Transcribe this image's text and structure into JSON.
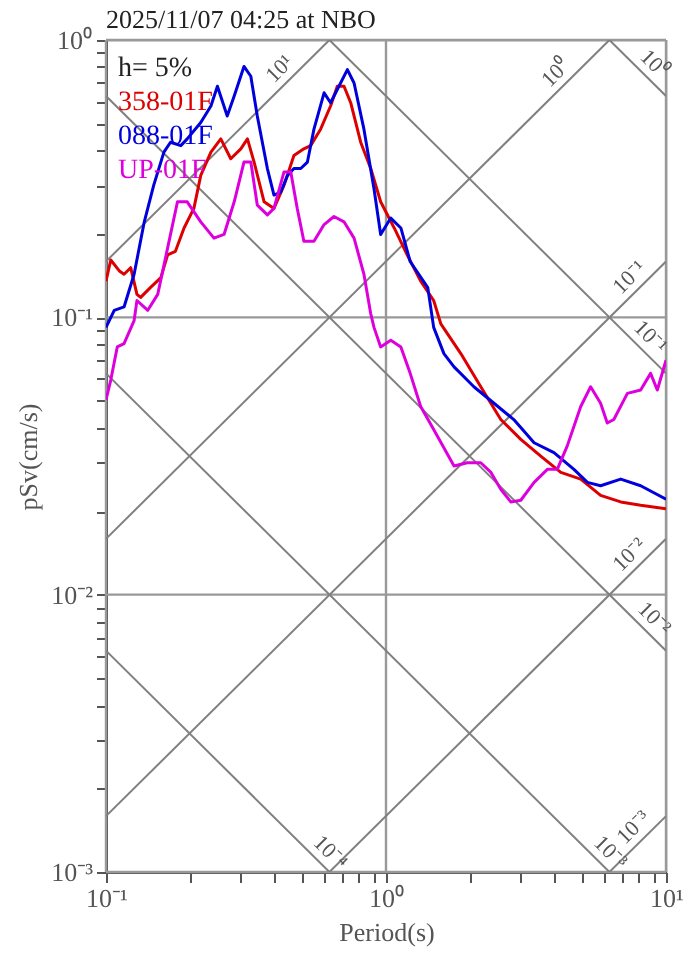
{
  "chart_data": {
    "type": "line",
    "title": "2025/11/07 04:25 at NBO",
    "xlabel": "Period(s)",
    "ylabel": "pSv(cm/s)",
    "log": "xy",
    "grid": true,
    "legend": "top left",
    "xlim": [
      0.1,
      10
    ],
    "ylim": [
      0.001,
      1
    ],
    "xticks": [
      {
        "value": 0.1,
        "label": "10⁻¹"
      },
      {
        "value": 0.2,
        "label": null
      },
      {
        "value": 0.3,
        "label": null
      },
      {
        "value": 0.4,
        "label": null
      },
      {
        "value": 0.5,
        "label": null
      },
      {
        "value": 0.6,
        "label": null
      },
      {
        "value": 0.7,
        "label": null
      },
      {
        "value": 0.8,
        "label": null
      },
      {
        "value": 0.9,
        "label": null
      },
      {
        "value": 1,
        "label": "10⁰"
      },
      {
        "value": 2,
        "label": null
      },
      {
        "value": 3,
        "label": null
      },
      {
        "value": 4,
        "label": null
      },
      {
        "value": 5,
        "label": null
      },
      {
        "value": 6,
        "label": null
      },
      {
        "value": 7,
        "label": null
      },
      {
        "value": 8,
        "label": null
      },
      {
        "value": 9,
        "label": null
      },
      {
        "value": 10,
        "label": "10¹"
      }
    ],
    "yticks": [
      {
        "value": 0.001,
        "label": "10⁻³"
      },
      {
        "value": 0.002,
        "label": null
      },
      {
        "value": 0.003,
        "label": null
      },
      {
        "value": 0.004,
        "label": null
      },
      {
        "value": 0.005,
        "label": null
      },
      {
        "value": 0.006,
        "label": null
      },
      {
        "value": 0.007,
        "label": null
      },
      {
        "value": 0.008,
        "label": null
      },
      {
        "value": 0.009,
        "label": null
      },
      {
        "value": 0.01,
        "label": "10⁻²"
      },
      {
        "value": 0.02,
        "label": null
      },
      {
        "value": 0.03,
        "label": null
      },
      {
        "value": 0.04,
        "label": null
      },
      {
        "value": 0.05,
        "label": null
      },
      {
        "value": 0.06,
        "label": null
      },
      {
        "value": 0.07,
        "label": null
      },
      {
        "value": 0.08,
        "label": null
      },
      {
        "value": 0.09,
        "label": null
      },
      {
        "value": 0.1,
        "label": "10⁻¹"
      },
      {
        "value": 0.2,
        "label": null
      },
      {
        "value": 0.3,
        "label": null
      },
      {
        "value": 0.4,
        "label": null
      },
      {
        "value": 0.5,
        "label": null
      },
      {
        "value": 0.6,
        "label": null
      },
      {
        "value": 0.7,
        "label": null
      },
      {
        "value": 0.8,
        "label": null
      },
      {
        "value": 0.9,
        "label": null
      },
      {
        "value": 1,
        "label": "10⁰"
      }
    ],
    "annotations": [
      "h= 5%",
      {
        "text": "10¹",
        "x": 0.454,
        "y": 0.723
      },
      {
        "text": "10⁰",
        "x": 4.4,
        "y": 0.7
      },
      {
        "text": "10⁰",
        "x": 8.34,
        "y": 0.753
      },
      {
        "text": "10⁻¹",
        "x": 8.07,
        "y": 0.128
      },
      {
        "text": "10⁻¹",
        "x": 8.07,
        "y": 0.0779
      },
      {
        "text": "10⁻²",
        "x": 8.07,
        "y": 0.0128
      },
      {
        "text": "10⁻²",
        "x": 8.34,
        "y": 0.00753
      },
      {
        "text": "10⁻³",
        "x": 8.34,
        "y": 0.00133
      },
      {
        "text": "10⁻³",
        "x": 5.81,
        "y": 0.00108
      },
      {
        "text": "10⁻⁴",
        "x": 0.581,
        "y": 0.00108
      }
    ],
    "series": [
      {
        "type": "line",
        "color": "#808080",
        "x": [
          0.1,
          0.628
        ],
        "values": [
          0.159,
          1
        ]
      },
      {
        "type": "line",
        "color": "#808080",
        "x": [
          0.1,
          6.28
        ],
        "values": [
          0.0159,
          1
        ]
      },
      {
        "type": "line",
        "color": "#808080",
        "x": [
          0.1,
          10
        ],
        "values": [
          0.00159,
          0.159
        ]
      },
      {
        "type": "line",
        "color": "#808080",
        "x": [
          0.628,
          10
        ],
        "values": [
          0.001,
          0.0159
        ]
      },
      {
        "type": "line",
        "color": "#808080",
        "x": [
          6.28,
          10
        ],
        "values": [
          0.001,
          0.00159
        ]
      },
      {
        "type": "line",
        "color": "#808080",
        "x": [
          6.28,
          10
        ],
        "values": [
          1,
          0.628
        ]
      },
      {
        "type": "line",
        "color": "#808080",
        "x": [
          0.628,
          10
        ],
        "values": [
          1,
          0.0628
        ]
      },
      {
        "type": "line",
        "color": "#808080",
        "x": [
          0.1,
          10
        ],
        "values": [
          0.628,
          0.00628
        ]
      },
      {
        "type": "line",
        "color": "#808080",
        "x": [
          0.1,
          6.28
        ],
        "values": [
          0.0628,
          0.001
        ]
      },
      {
        "type": "line",
        "color": "#808080",
        "x": [
          0.1,
          0.628
        ],
        "values": [
          0.00628,
          0.001
        ]
      },
      {
        "name": "358-01F",
        "color": "#dd0000",
        "x": [
          0.1,
          0.104,
          0.1116,
          0.116,
          0.1225,
          0.129,
          0.133,
          0.144,
          0.157,
          0.166,
          0.177,
          0.19,
          0.206,
          0.218,
          0.237,
          0.257,
          0.279,
          0.303,
          0.32,
          0.338,
          0.367,
          0.398,
          0.432,
          0.469,
          0.509,
          0.538,
          0.584,
          0.634,
          0.67,
          0.708,
          0.748,
          0.812,
          0.882,
          0.957,
          1.07,
          1.19,
          1.33,
          1.48,
          1.57,
          1.85,
          2.18,
          2.57,
          3.03,
          3.57,
          4.21,
          4.96,
          5.84,
          6.89,
          8.12,
          10
        ],
        "values": [
          0.135,
          0.161,
          0.147,
          0.143,
          0.151,
          0.121,
          0.118,
          0.128,
          0.139,
          0.168,
          0.173,
          0.21,
          0.247,
          0.325,
          0.394,
          0.44,
          0.373,
          0.405,
          0.44,
          0.363,
          0.261,
          0.247,
          0.299,
          0.383,
          0.405,
          0.416,
          0.477,
          0.578,
          0.681,
          0.681,
          0.594,
          0.428,
          0.344,
          0.261,
          0.21,
          0.168,
          0.135,
          0.115,
          0.0947,
          0.074,
          0.0562,
          0.0428,
          0.0363,
          0.0316,
          0.0276,
          0.0261,
          0.0228,
          0.0216,
          0.021,
          0.0204
        ]
      },
      {
        "name": "088-01F",
        "color": "#0000dd",
        "x": [
          0.1,
          0.107,
          0.116,
          0.126,
          0.137,
          0.148,
          0.161,
          0.17,
          0.185,
          0.195,
          0.218,
          0.237,
          0.25,
          0.271,
          0.287,
          0.311,
          0.329,
          0.347,
          0.377,
          0.398,
          0.421,
          0.445,
          0.469,
          0.496,
          0.524,
          0.553,
          0.601,
          0.634,
          0.67,
          0.728,
          0.769,
          0.834,
          0.906,
          0.957,
          1.04,
          1.13,
          1.22,
          1.41,
          1.48,
          1.61,
          1.75,
          2.06,
          2.43,
          2.86,
          3.38,
          3.98,
          4.69,
          5.24,
          5.84,
          6.89,
          8.12,
          10
        ],
        "values": [
          0.092,
          0.106,
          0.109,
          0.143,
          0.221,
          0.299,
          0.394,
          0.428,
          0.416,
          0.44,
          0.504,
          0.578,
          0.681,
          0.532,
          0.628,
          0.803,
          0.74,
          0.532,
          0.344,
          0.276,
          0.283,
          0.325,
          0.344,
          0.344,
          0.363,
          0.477,
          0.645,
          0.594,
          0.663,
          0.782,
          0.7,
          0.477,
          0.291,
          0.199,
          0.228,
          0.21,
          0.159,
          0.128,
          0.092,
          0.074,
          0.0663,
          0.0562,
          0.049,
          0.0428,
          0.0353,
          0.0325,
          0.0283,
          0.0254,
          0.0247,
          0.0261,
          0.0247,
          0.0221
        ]
      },
      {
        "name": "UP-01F",
        "color": "#dd00dd",
        "x": [
          0.1,
          0.104,
          0.1097,
          0.116,
          0.126,
          0.129,
          0.141,
          0.153,
          0.166,
          0.18,
          0.195,
          0.218,
          0.243,
          0.264,
          0.287,
          0.311,
          0.329,
          0.347,
          0.377,
          0.398,
          0.432,
          0.457,
          0.482,
          0.509,
          0.553,
          0.601,
          0.652,
          0.708,
          0.769,
          0.834,
          0.882,
          0.906,
          0.957,
          1.04,
          1.13,
          1.22,
          1.33,
          1.48,
          1.75,
          1.95,
          2.18,
          2.37,
          2.57,
          2.79,
          3.03,
          3.38,
          3.77,
          4.09,
          4.44,
          4.96,
          5.38,
          5.84,
          6.17,
          6.51,
          7.28,
          8.12,
          8.81,
          9.31,
          10
        ],
        "values": [
          0.0504,
          0.0594,
          0.0782,
          0.0804,
          0.0973,
          0.115,
          0.106,
          0.121,
          0.178,
          0.261,
          0.261,
          0.221,
          0.193,
          0.199,
          0.261,
          0.363,
          0.363,
          0.254,
          0.234,
          0.247,
          0.334,
          0.334,
          0.247,
          0.188,
          0.188,
          0.216,
          0.231,
          0.221,
          0.193,
          0.143,
          0.103,
          0.092,
          0.0782,
          0.0826,
          0.0782,
          0.0628,
          0.0477,
          0.0394,
          0.0291,
          0.0299,
          0.0299,
          0.0276,
          0.024,
          0.0216,
          0.0219,
          0.0254,
          0.0283,
          0.0283,
          0.0344,
          0.0477,
          0.0562,
          0.049,
          0.0416,
          0.0428,
          0.0532,
          0.0547,
          0.0628,
          0.0547,
          0.07
        ]
      }
    ]
  }
}
